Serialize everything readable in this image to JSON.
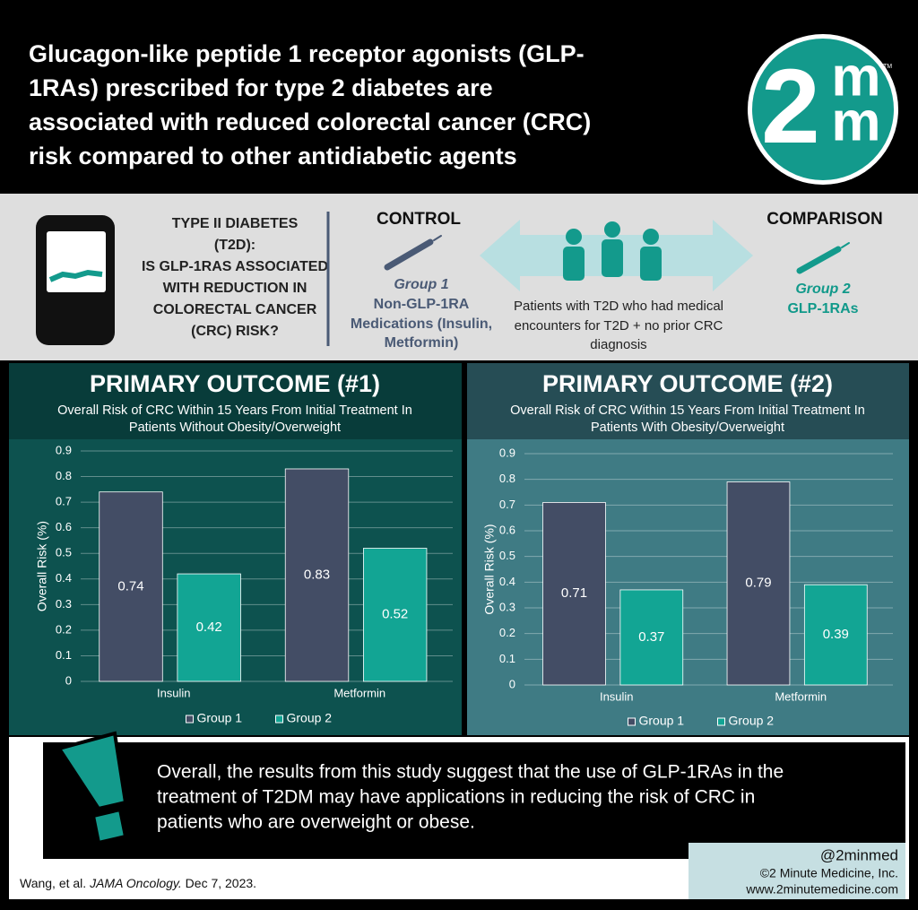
{
  "header": {
    "title": [
      "Glucagon-like peptide 1 receptor agonists (GLP-",
      "1RAs) prescribed for type 2 diabetes are",
      "associated with reduced colorectal cancer (CRC)",
      "risk compared to other antidiabetic agents"
    ],
    "logo": {
      "number": "2",
      "letters": [
        "m",
        "m"
      ],
      "mark": "TM"
    }
  },
  "study": {
    "question": [
      "TYPE II DIABETES",
      "(T2D):",
      "IS GLP-1RAS ASSOCIATED",
      "WITH REDUCTION IN",
      "COLORECTAL CANCER",
      "(CRC) RISK?"
    ],
    "control": {
      "heading": "CONTROL",
      "group": "Group 1",
      "description": [
        "Non-GLP-1RA",
        "Medications (Insulin,",
        "Metformin)"
      ]
    },
    "population": [
      "Patients with T2D who had medical",
      "encounters for T2D + no prior CRC",
      "diagnosis"
    ],
    "comparison": {
      "heading": "COMPARISON",
      "group": "Group 2",
      "description": [
        "GLP-1RAs"
      ]
    }
  },
  "chart_data": [
    {
      "type": "bar",
      "title": "PRIMARY OUTCOME (#1)",
      "subtitle": [
        "Overall Risk of CRC Within 15 Years From Initial Treatment In",
        "Patients Without Obesity/Overweight"
      ],
      "y_label": "Overall Risk (%)",
      "categories": [
        "Insulin",
        "Metformin"
      ],
      "series": [
        {
          "name": "Group 1",
          "color": "#434d65",
          "values": [
            0.74,
            0.83
          ]
        },
        {
          "name": "Group 2",
          "color": "#12a594",
          "values": [
            0.42,
            0.52
          ]
        }
      ],
      "ylim": [
        0,
        0.9
      ],
      "yticks": [
        0,
        0.1,
        0.2,
        0.3,
        0.4,
        0.5,
        0.6,
        0.7,
        0.8,
        0.9
      ],
      "grid": true,
      "legend": "bottom"
    },
    {
      "type": "bar",
      "title": "PRIMARY OUTCOME (#2)",
      "subtitle": [
        "Overall Risk of CRC Within 15 Years From Initial Treatment In",
        "Patients With Obesity/Overweight"
      ],
      "y_label": "Overall Risk (%)",
      "categories": [
        "Insulin",
        "Metformin"
      ],
      "series": [
        {
          "name": "Group 1",
          "color": "#434d65",
          "values": [
            0.71,
            0.79
          ]
        },
        {
          "name": "Group 2",
          "color": "#12a594",
          "values": [
            0.37,
            0.39
          ]
        }
      ],
      "ylim": [
        0,
        0.9
      ],
      "yticks": [
        0,
        0.1,
        0.2,
        0.3,
        0.4,
        0.5,
        0.6,
        0.7,
        0.8,
        0.9
      ],
      "grid": true,
      "legend": "bottom"
    }
  ],
  "conclusion": [
    "Overall, the results from this study suggest that the use of GLP-1RAs in the",
    "treatment of T2DM may have applications in reducing the risk of CRC in",
    "patients who are overweight or obese."
  ],
  "footer": {
    "citation": {
      "authors": "Wang, et al.",
      "journal": "JAMA Oncology.",
      "date": "Dec 7, 2023."
    },
    "credits": [
      "@2minmed",
      "©2 Minute Medicine, Inc.",
      "www.2minutemedicine.com"
    ]
  }
}
